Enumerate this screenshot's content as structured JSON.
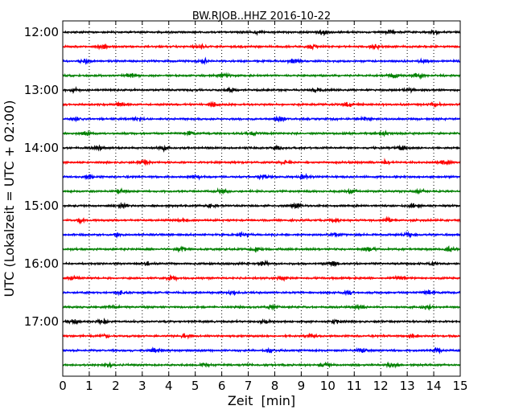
{
  "chart_data": {
    "type": "line",
    "title": "BW.RJOB..HHZ 2016-10-22",
    "xlabel": "Zeit  [min]",
    "ylabel": "UTC (Lokalzeit = UTC + 02:00)",
    "xlim": [
      0,
      15
    ],
    "x_ticks": [
      0,
      1,
      2,
      3,
      4,
      5,
      6,
      7,
      8,
      9,
      10,
      11,
      12,
      13,
      14,
      15
    ],
    "y_tick_labels": [
      "12:00",
      "13:00",
      "14:00",
      "15:00",
      "16:00",
      "17:00"
    ],
    "grid": "vertical dotted",
    "trace_start_times": [
      "12:00",
      "12:15",
      "12:30",
      "12:45",
      "13:00",
      "13:15",
      "13:30",
      "13:45",
      "14:00",
      "14:15",
      "14:30",
      "14:45",
      "15:00",
      "15:15",
      "15:30",
      "15:45",
      "16:00",
      "16:15",
      "16:30",
      "16:45",
      "17:00",
      "17:15",
      "17:30",
      "17:45"
    ],
    "color_cycle": [
      "#000000",
      "#ff0000",
      "#0000ff",
      "#008000"
    ],
    "series": [
      {
        "start": "12:00",
        "color": "#000000",
        "bursts": [
          7.3,
          9.8,
          12.3,
          14.0
        ]
      },
      {
        "start": "12:15",
        "color": "#ff0000",
        "bursts": [
          1.5,
          5.2,
          9.4,
          11.8
        ]
      },
      {
        "start": "12:30",
        "color": "#0000ff",
        "bursts": [
          0.8,
          5.3,
          8.7,
          13.6
        ]
      },
      {
        "start": "12:45",
        "color": "#008000",
        "bursts": [
          2.6,
          6.1,
          12.5,
          13.4
        ]
      },
      {
        "start": "13:00",
        "color": "#000000",
        "bursts": [
          0.4,
          6.3,
          9.6,
          13.1
        ]
      },
      {
        "start": "13:15",
        "color": "#ff0000",
        "bursts": [
          2.2,
          5.7,
          10.8,
          14.1
        ]
      },
      {
        "start": "13:30",
        "color": "#0000ff",
        "bursts": [
          0.6,
          2.9,
          8.2,
          11.4
        ]
      },
      {
        "start": "13:45",
        "color": "#008000",
        "bursts": [
          0.9,
          4.8,
          7.2,
          12.1
        ]
      },
      {
        "start": "14:00",
        "color": "#000000",
        "bursts": [
          1.3,
          3.8,
          8.1,
          12.8
        ]
      },
      {
        "start": "14:15",
        "color": "#ff0000",
        "bursts": [
          3.1,
          8.4,
          12.2,
          14.4
        ]
      },
      {
        "start": "14:30",
        "color": "#0000ff",
        "bursts": [
          1.0,
          5.0,
          7.6,
          9.1
        ]
      },
      {
        "start": "14:45",
        "color": "#008000",
        "bursts": [
          2.2,
          6.0,
          10.9,
          13.5
        ]
      },
      {
        "start": "15:00",
        "color": "#000000",
        "bursts": [
          2.3,
          5.6,
          8.8,
          13.3
        ]
      },
      {
        "start": "15:15",
        "color": "#ff0000",
        "bursts": [
          0.7,
          4.6,
          10.3,
          12.3
        ]
      },
      {
        "start": "15:30",
        "color": "#0000ff",
        "bursts": [
          2.0,
          6.8,
          10.3,
          13.1
        ]
      },
      {
        "start": "15:45",
        "color": "#008000",
        "bursts": [
          4.5,
          7.3,
          11.6,
          14.6
        ]
      },
      {
        "start": "16:00",
        "color": "#000000",
        "bursts": [
          3.2,
          7.6,
          10.2,
          14.0
        ]
      },
      {
        "start": "16:15",
        "color": "#ff0000",
        "bursts": [
          0.4,
          4.1,
          8.3,
          12.7
        ]
      },
      {
        "start": "16:30",
        "color": "#0000ff",
        "bursts": [
          2.2,
          6.4,
          10.8,
          13.8
        ]
      },
      {
        "start": "16:45",
        "color": "#008000",
        "bursts": [
          1.9,
          7.9,
          11.2,
          13.7
        ]
      },
      {
        "start": "17:00",
        "color": "#000000",
        "bursts": [
          0.4,
          1.5,
          7.6,
          10.3
        ]
      },
      {
        "start": "17:15",
        "color": "#ff0000",
        "bursts": [
          1.6,
          4.6,
          9.4,
          13.2
        ]
      },
      {
        "start": "17:30",
        "color": "#0000ff",
        "bursts": [
          3.5,
          7.8,
          11.3,
          14.1
        ]
      },
      {
        "start": "17:45",
        "color": "#008000",
        "bursts": [
          1.7,
          5.4,
          9.9,
          12.4
        ]
      }
    ]
  }
}
